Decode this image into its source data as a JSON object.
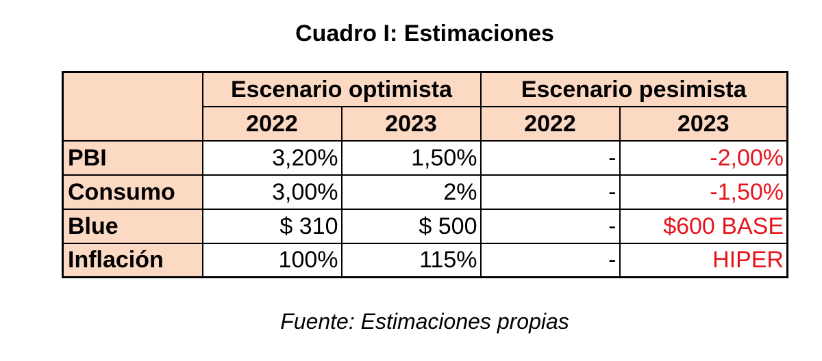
{
  "title": "Cuadro I: Estimaciones",
  "table": {
    "scenario_headers": [
      "Escenario optimista",
      "Escenario pesimista"
    ],
    "year_headers": [
      "2022",
      "2023",
      "2022",
      "2023"
    ],
    "rows": [
      {
        "label": "PBI",
        "cells": [
          "3,20%",
          "1,50%",
          "-",
          "-2,00%"
        ]
      },
      {
        "label": "Consumo",
        "cells": [
          "3,00%",
          "2%",
          "-",
          "-1,50%"
        ]
      },
      {
        "label": "Blue",
        "cells": [
          "$ 310",
          "$ 500",
          "-",
          "$600 BASE"
        ]
      },
      {
        "label": "Inflación",
        "cells": [
          "100%",
          "115%",
          "-",
          "HIPER"
        ]
      }
    ],
    "header_fill": "#fcd9c3",
    "highlight_color": "#e8141c"
  },
  "source": "Fuente: Estimaciones propias"
}
